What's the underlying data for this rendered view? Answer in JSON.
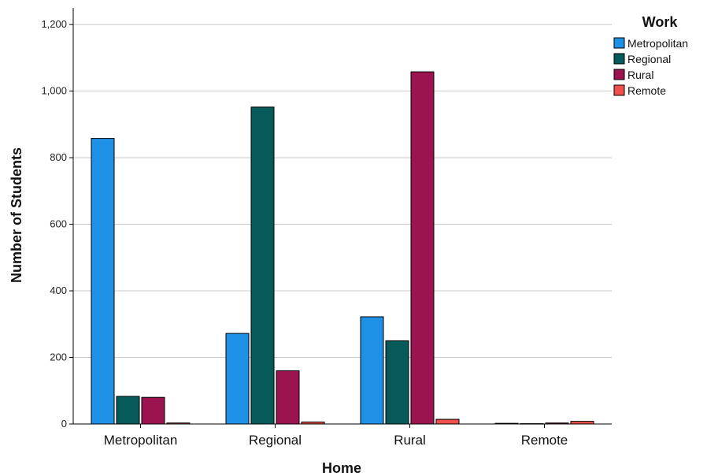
{
  "chart_data": {
    "type": "bar",
    "xlabel": "Home",
    "ylabel": "Number of Students",
    "ylim": [
      0,
      1250
    ],
    "yticks": [
      0,
      200,
      400,
      600,
      800,
      1000,
      1200
    ],
    "ytick_labels": [
      "0",
      "200",
      "400",
      "600",
      "800",
      "1,000",
      "1,200"
    ],
    "grid": true,
    "legend_title": "Work",
    "legend_position": "top-right",
    "categories": [
      "Metropolitan",
      "Regional",
      "Rural",
      "Remote"
    ],
    "series": [
      {
        "name": "Metropolitan",
        "color": "#1E90E6",
        "values": [
          858,
          272,
          322,
          2
        ]
      },
      {
        "name": "Regional",
        "color": "#065A5A",
        "values": [
          83,
          952,
          250,
          1
        ]
      },
      {
        "name": "Rural",
        "color": "#9B1450",
        "values": [
          80,
          160,
          1058,
          3
        ]
      },
      {
        "name": "Remote",
        "color": "#F0504B",
        "values": [
          3,
          6,
          14,
          8
        ]
      }
    ]
  }
}
